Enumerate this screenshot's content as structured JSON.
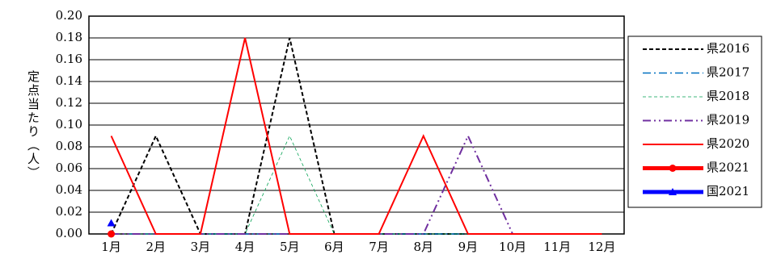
{
  "chart_data": {
    "type": "line",
    "y_label": "定点当たり（人）",
    "categories": [
      "1月",
      "2月",
      "3月",
      "4月",
      "5月",
      "6月",
      "7月",
      "8月",
      "9月",
      "10月",
      "11月",
      "12月"
    ],
    "series": [
      {
        "name": "県2016",
        "color": "#000000",
        "dash": "dashed",
        "values": [
          0,
          0.09,
          0,
          0,
          0.18,
          0,
          0,
          0,
          0,
          0,
          0,
          0
        ]
      },
      {
        "name": "県2017",
        "color": "#0070c0",
        "dash": "dashdot",
        "values": [
          0,
          0,
          0,
          0,
          0,
          0,
          0,
          0,
          0,
          0,
          0,
          0
        ]
      },
      {
        "name": "県2018",
        "color": "#00a050",
        "dash": "thin-dashed",
        "values": [
          0,
          0,
          0,
          0,
          0.09,
          0,
          0,
          0,
          0,
          0,
          0,
          0
        ]
      },
      {
        "name": "県2019",
        "color": "#7030a0",
        "dash": "dashdotdot",
        "values": [
          0,
          0,
          0,
          0,
          0,
          0,
          0,
          0,
          0.09,
          0,
          0,
          0
        ]
      },
      {
        "name": "県2020",
        "color": "#ff0000",
        "dash": "solid",
        "values": [
          0.09,
          0,
          0,
          0.18,
          0,
          0,
          0,
          0.09,
          0,
          0,
          0,
          0
        ]
      },
      {
        "name": "県2021",
        "color": "#ff0000",
        "dash": "thick",
        "marker": "circle",
        "values": [
          0,
          null,
          null,
          null,
          null,
          null,
          null,
          null,
          null,
          null,
          null,
          null
        ]
      },
      {
        "name": "国2021",
        "color": "#0000ff",
        "dash": "thick",
        "marker": "triangle",
        "values": [
          0.01,
          null,
          null,
          null,
          null,
          null,
          null,
          null,
          null,
          null,
          null,
          null
        ]
      }
    ],
    "ylim": [
      0,
      0.2
    ],
    "yticks": [
      {
        "value": 0,
        "label": "0.00"
      },
      {
        "value": 0.02,
        "label": "0.02"
      },
      {
        "value": 0.04,
        "label": "0.04"
      },
      {
        "value": 0.06,
        "label": "0.06"
      },
      {
        "value": 0.08,
        "label": "0.08"
      },
      {
        "value": 0.1,
        "label": "0.10"
      },
      {
        "value": 0.12,
        "label": "0.12"
      },
      {
        "value": 0.14,
        "label": "0.14"
      },
      {
        "value": 0.16,
        "label": "0.16"
      },
      {
        "value": 0.18,
        "label": "0.18"
      },
      {
        "value": 0.2,
        "label": "0.20"
      }
    ],
    "grid": true,
    "legend": "right"
  }
}
